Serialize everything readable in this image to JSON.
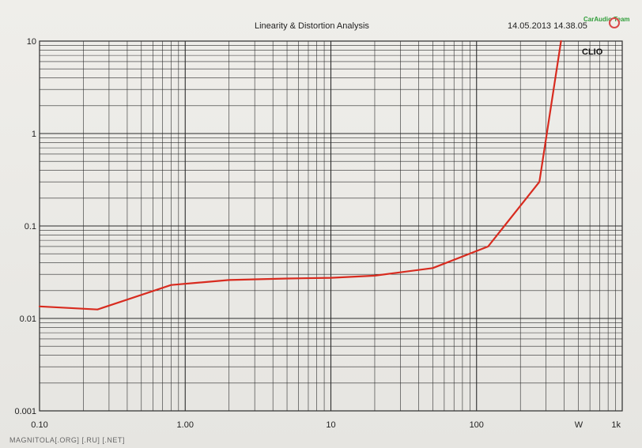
{
  "header": {
    "title": "Linearity & Distortion Analysis",
    "timestamp": "14.05.2013 14.38.05"
  },
  "logo": {
    "text": "CarAudio Team"
  },
  "watermark": "MAGNITOLA[.ORG] [.RU] [.NET]",
  "brand": "CLIO",
  "colors": {
    "line": "#d82b1f",
    "grid": "#2c2c2c",
    "background": "#ecebe7"
  },
  "chart_data": {
    "type": "line",
    "title": "Linearity & Distortion Analysis",
    "x_scale": "log",
    "y_scale": "log",
    "xlim": [
      0.1,
      1000
    ],
    "ylim": [
      0.001,
      10
    ],
    "x_ticks": [
      {
        "value": 0.1,
        "label": "0.10"
      },
      {
        "value": 1,
        "label": "1.00"
      },
      {
        "value": 10,
        "label": "10"
      },
      {
        "value": 100,
        "label": "100"
      },
      {
        "value": 1000,
        "label": "1k"
      }
    ],
    "x_unit_label": "W",
    "y_ticks": [
      {
        "value": 10,
        "label": "10"
      },
      {
        "value": 1,
        "label": "1"
      },
      {
        "value": 0.1,
        "label": "0.1"
      },
      {
        "value": 0.01,
        "label": "0.01"
      },
      {
        "value": 0.001,
        "label": "0.001"
      }
    ],
    "grid": true,
    "series": [
      {
        "x": [
          0.1,
          0.25,
          0.8,
          2,
          5,
          10,
          20,
          50,
          120,
          270,
          380
        ],
        "y": [
          0.0135,
          0.0125,
          0.023,
          0.026,
          0.027,
          0.0275,
          0.029,
          0.035,
          0.06,
          0.3,
          10
        ]
      }
    ]
  }
}
